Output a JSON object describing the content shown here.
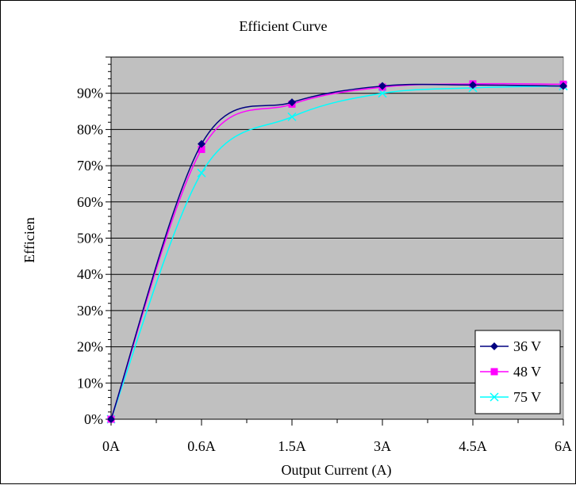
{
  "chart_data": {
    "type": "line",
    "title": "Efficient Curve",
    "xlabel": "Output Current (A)",
    "ylabel": "Efficien",
    "categories": [
      "0A",
      "0.6A",
      "1.5A",
      "3A",
      "4.5A",
      "6A"
    ],
    "y_ticks": [
      "0%",
      "10%",
      "20%",
      "30%",
      "40%",
      "50%",
      "60%",
      "70%",
      "80%",
      "90%"
    ],
    "ylim": [
      0,
      100
    ],
    "grid": true,
    "plot_background": "#C0C0C0",
    "legend_position": "bottom-right",
    "series": [
      {
        "name": "36 V",
        "color": "#000080",
        "marker": "diamond",
        "values": [
          0,
          76,
          87.5,
          92,
          92.3,
          92
        ]
      },
      {
        "name": "48 V",
        "color": "#FF00FF",
        "marker": "square",
        "values": [
          0,
          74.5,
          87,
          91.7,
          92.6,
          92.5
        ]
      },
      {
        "name": "75 V",
        "color": "#00FFFF",
        "marker": "x",
        "values": [
          0,
          68,
          83.5,
          90,
          91.5,
          92
        ]
      }
    ]
  }
}
